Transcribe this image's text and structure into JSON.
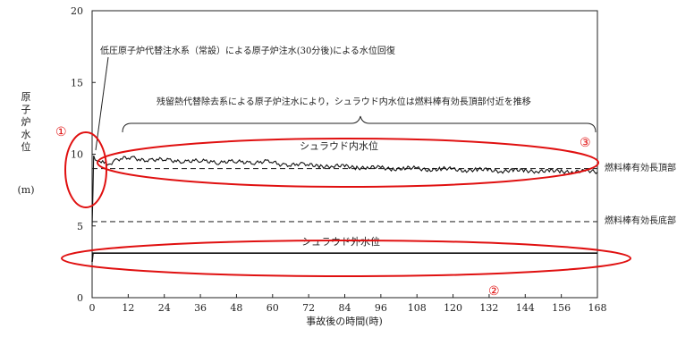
{
  "chart_data": {
    "type": "line",
    "xlabel": "事故後の時間(時)",
    "ylabel_chars": [
      "原",
      "子",
      "炉",
      "水",
      "位"
    ],
    "yunit": "(m)",
    "xlim": [
      0,
      168
    ],
    "ylim": [
      0,
      20
    ],
    "x_ticks": [
      0,
      12,
      24,
      36,
      48,
      60,
      72,
      84,
      96,
      108,
      120,
      132,
      144,
      156,
      168
    ],
    "y_ticks": [
      0,
      5,
      10,
      15,
      20
    ],
    "grid": false,
    "series": [
      {
        "name": "シュラウド内水位",
        "style": "noisy-solid",
        "x": [
          0,
          0.3,
          0.5,
          1,
          2,
          3,
          4,
          5,
          6,
          8,
          10,
          12,
          14,
          16,
          18,
          20,
          22,
          24,
          26,
          28,
          30,
          32,
          34,
          36,
          38,
          40,
          42,
          44,
          46,
          48,
          50,
          52,
          54,
          56,
          58,
          60,
          62,
          64,
          66,
          68,
          70,
          72,
          76,
          80,
          84,
          88,
          92,
          96,
          100,
          104,
          108,
          112,
          116,
          120,
          124,
          128,
          132,
          136,
          140,
          144,
          148,
          152,
          156,
          160,
          164,
          168
        ],
        "y": [
          5.0,
          7.5,
          9.9,
          9.6,
          9.5,
          9.4,
          9.5,
          9.4,
          9.4,
          9.6,
          9.7,
          9.7,
          9.7,
          9.65,
          9.65,
          9.6,
          9.6,
          9.6,
          9.55,
          9.55,
          9.55,
          9.5,
          9.5,
          9.5,
          9.5,
          9.5,
          9.45,
          9.45,
          9.45,
          9.45,
          9.45,
          9.45,
          9.45,
          9.45,
          9.45,
          9.45,
          9.3,
          9.3,
          9.3,
          9.3,
          9.25,
          9.25,
          9.2,
          9.15,
          9.15,
          9.1,
          9.05,
          9.05,
          9.0,
          9.0,
          9.0,
          8.95,
          8.95,
          8.95,
          8.9,
          8.9,
          8.9,
          8.85,
          8.85,
          8.85,
          8.85,
          8.8,
          8.8,
          8.8,
          8.8,
          8.75
        ]
      },
      {
        "name": "シュラウド外水位",
        "style": "solid",
        "x": [
          0,
          0.3,
          1,
          168
        ],
        "y": [
          2.5,
          3.1,
          3.1,
          3.1
        ]
      }
    ],
    "reference_lines": [
      {
        "label": "燃料棒有効長頂部",
        "y": 9.0,
        "style": "dashed"
      },
      {
        "label": "燃料棒有効長底部",
        "y": 5.3,
        "style": "dashed"
      }
    ],
    "annotations": {
      "recovery": "低圧原子炉代替注水系（常設）による原子炉注水(30分後)による水位回復",
      "brace": "残留熱代替除去系による原子炉注水により，シュラウド内水位は燃料棒有効長頂部付近を推移",
      "inside_label": "シュラウド内水位",
      "outside_label": "シュラウド外水位",
      "marker_1": "①",
      "marker_2": "②",
      "marker_3": "③"
    },
    "highlight_color": "#e01010"
  }
}
